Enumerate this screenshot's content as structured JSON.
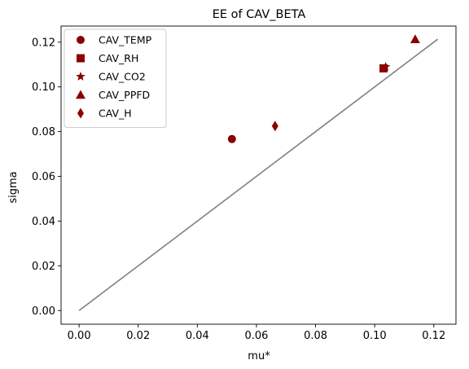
{
  "chart_data": {
    "type": "scatter",
    "title": "EE of CAV_BETA",
    "xlabel": "mu*",
    "ylabel": "sigma",
    "xlim": [
      -0.0061,
      0.1275
    ],
    "ylim": [
      -0.0061,
      0.1272
    ],
    "xticks": [
      "0.00",
      "0.02",
      "0.04",
      "0.06",
      "0.08",
      "0.10",
      "0.12"
    ],
    "yticks": [
      "0.00",
      "0.02",
      "0.04",
      "0.06",
      "0.08",
      "0.10",
      "0.12"
    ],
    "grid": false,
    "legend_position": "top-left",
    "marker_color": "#8b0000",
    "reference_line": {
      "x": [
        0.0,
        0.1213
      ],
      "y": [
        0.0,
        0.1213
      ],
      "color": "#808080"
    },
    "series": [
      {
        "name": "CAV_TEMP",
        "marker": "circle",
        "x": [
          0.0517
        ],
        "y": [
          0.0767
        ]
      },
      {
        "name": "CAV_RH",
        "marker": "square",
        "x": [
          0.103
        ],
        "y": [
          0.1083
        ]
      },
      {
        "name": "CAV_CO2",
        "marker": "star",
        "x": [
          0.1037
        ],
        "y": [
          0.109
        ]
      },
      {
        "name": "CAV_PPFD",
        "marker": "triangle",
        "x": [
          0.1137
        ],
        "y": [
          0.1213
        ]
      },
      {
        "name": "CAV_H",
        "marker": "thin-diamond",
        "x": [
          0.0663
        ],
        "y": [
          0.0825
        ]
      }
    ]
  }
}
